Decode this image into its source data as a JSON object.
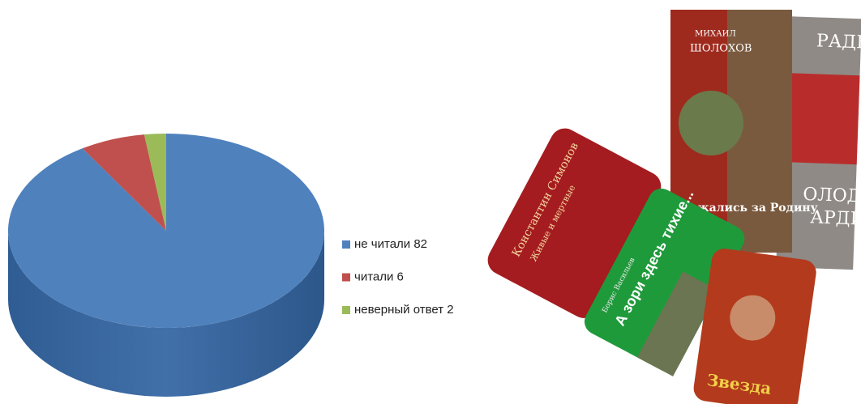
{
  "chart_data": {
    "type": "pie",
    "categories": [
      "не читали 82",
      "читали 6",
      "неверный ответ 2"
    ],
    "values": [
      82,
      6,
      2
    ],
    "colors": [
      "#4f81bd",
      "#c0504d",
      "#9bbb59"
    ],
    "legend": "right"
  },
  "book_covers": [
    "МИХАИЛ",
    "ШОЛОХОВ",
    "Они сражались за Родину",
    "РАДЕЕВ",
    "ОЛОДАЯ",
    "АРДИЯ",
    "Константин Симонов",
    "Живые и мертвые",
    "А зори здесь тихие...",
    "Борис Васильев",
    "Звезда"
  ]
}
